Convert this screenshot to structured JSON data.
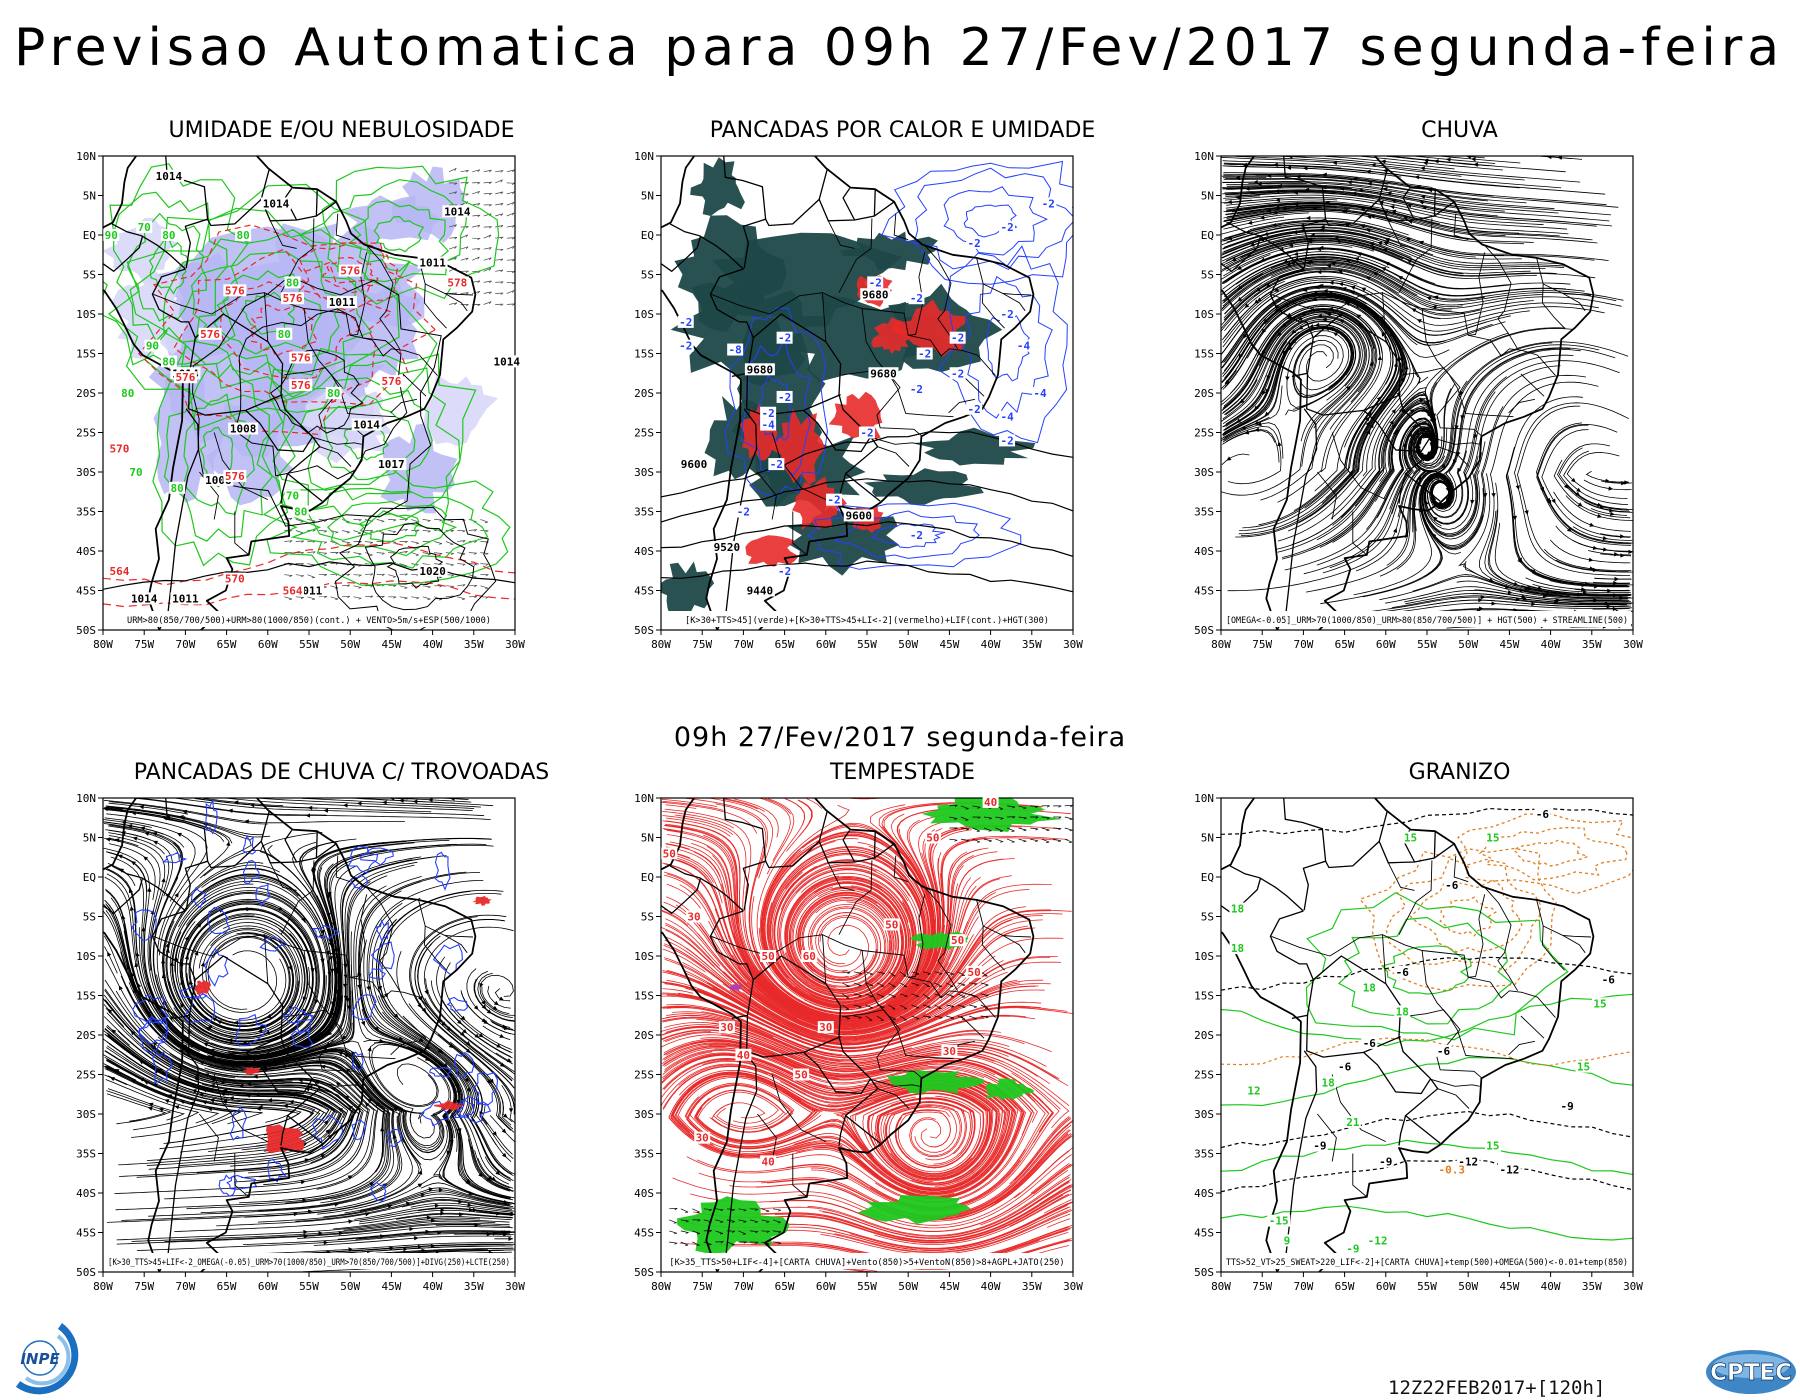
{
  "title": "Previsao Automatica  para 09h 27/Fev/2017 segunda-feira",
  "center_date": "09h 27/Fev/2017 segunda-feira",
  "run_label": "12Z22FEB2017+[120h]",
  "logos": {
    "left": "INPE",
    "right": "CPTEC"
  },
  "colors": {
    "green": "#1ec81e",
    "red": "#e82a2a",
    "blue": "#2440ff",
    "lavender": "#b6b6f4",
    "dark_teal": "#1d4848",
    "orange": "#e08020",
    "magenta": "#b040b0",
    "black": "#000000"
  },
  "axes": {
    "lat_labels": [
      "10N",
      "5N",
      "EQ",
      "5S",
      "10S",
      "15S",
      "20S",
      "25S",
      "30S",
      "35S",
      "40S",
      "45S",
      "50S"
    ],
    "lon_labels": [
      "80W",
      "75W",
      "70W",
      "65W",
      "60W",
      "55W",
      "50W",
      "45W",
      "40W",
      "35W",
      "30W"
    ]
  },
  "panels": [
    {
      "key": "umidade",
      "title": "UMIDADE E/OU NEBULOSIDADE",
      "legend": "URM>80(850/700/500)+URM>80(1000/850)(cont.) + VENTO>5m/s+ESP(500/1000)",
      "labels": [
        {
          "t": "1014",
          "lon": -72,
          "lat": 7.5,
          "c": "black"
        },
        {
          "t": "1014",
          "lon": -59,
          "lat": 4,
          "c": "black"
        },
        {
          "t": "1014",
          "lon": -37,
          "lat": 3,
          "c": "black"
        },
        {
          "t": "1011",
          "lon": -40,
          "lat": -3.5,
          "c": "black"
        },
        {
          "t": "1011",
          "lon": -51,
          "lat": -8.5,
          "c": "black"
        },
        {
          "t": "1014",
          "lon": -70,
          "lat": -17.5,
          "c": "black"
        },
        {
          "t": "1014",
          "lon": -31,
          "lat": -16,
          "c": "black"
        },
        {
          "t": "1008",
          "lon": -63,
          "lat": -24.5,
          "c": "black"
        },
        {
          "t": "1014",
          "lon": -48,
          "lat": -24,
          "c": "black"
        },
        {
          "t": "1017",
          "lon": -45,
          "lat": -29,
          "c": "black"
        },
        {
          "t": "1008",
          "lon": -66,
          "lat": -31,
          "c": "black"
        },
        {
          "t": "1020",
          "lon": -40,
          "lat": -42.5,
          "c": "black"
        },
        {
          "t": "1014",
          "lon": -75,
          "lat": -46,
          "c": "black"
        },
        {
          "t": "1011",
          "lon": -70,
          "lat": -46,
          "c": "black"
        },
        {
          "t": "1011",
          "lon": -55,
          "lat": -45,
          "c": "black"
        },
        {
          "t": "576",
          "lon": -50,
          "lat": -4.5,
          "c": "red"
        },
        {
          "t": "576",
          "lon": -64,
          "lat": -7,
          "c": "red"
        },
        {
          "t": "576",
          "lon": -57,
          "lat": -8,
          "c": "red"
        },
        {
          "t": "578",
          "lon": -37,
          "lat": -6,
          "c": "red"
        },
        {
          "t": "576",
          "lon": -67,
          "lat": -12.5,
          "c": "red"
        },
        {
          "t": "576",
          "lon": -70,
          "lat": -18,
          "c": "red"
        },
        {
          "t": "576",
          "lon": -56,
          "lat": -19,
          "c": "red"
        },
        {
          "t": "576",
          "lon": -45,
          "lat": -18.5,
          "c": "red"
        },
        {
          "t": "576",
          "lon": -56,
          "lat": -15.5,
          "c": "red"
        },
        {
          "t": "570",
          "lon": -78,
          "lat": -27,
          "c": "red"
        },
        {
          "t": "576",
          "lon": -64,
          "lat": -30.5,
          "c": "red"
        },
        {
          "t": "570",
          "lon": -64,
          "lat": -43.5,
          "c": "red"
        },
        {
          "t": "564",
          "lon": -78,
          "lat": -42.5,
          "c": "red"
        },
        {
          "t": "564",
          "lon": -57,
          "lat": -45,
          "c": "red"
        },
        {
          "t": "90",
          "lon": -79,
          "lat": 0,
          "c": "green"
        },
        {
          "t": "80",
          "lon": -72,
          "lat": 0,
          "c": "green"
        },
        {
          "t": "70",
          "lon": -75,
          "lat": 1,
          "c": "green"
        },
        {
          "t": "80",
          "lon": -63,
          "lat": 0,
          "c": "green"
        },
        {
          "t": "80",
          "lon": -57,
          "lat": -6,
          "c": "green"
        },
        {
          "t": "80",
          "lon": -58,
          "lat": -12.5,
          "c": "green"
        },
        {
          "t": "90",
          "lon": -74,
          "lat": -14,
          "c": "green"
        },
        {
          "t": "80",
          "lon": -72,
          "lat": -16,
          "c": "green"
        },
        {
          "t": "80",
          "lon": -77,
          "lat": -20,
          "c": "green"
        },
        {
          "t": "70",
          "lon": -76,
          "lat": -30,
          "c": "green"
        },
        {
          "t": "80",
          "lon": -71,
          "lat": -32,
          "c": "green"
        },
        {
          "t": "80",
          "lon": -52,
          "lat": -20,
          "c": "green"
        },
        {
          "t": "70",
          "lon": -57,
          "lat": -33,
          "c": "green"
        },
        {
          "t": "80",
          "lon": -56,
          "lat": -35,
          "c": "green"
        }
      ]
    },
    {
      "key": "pancadas_calor",
      "title": "PANCADAS POR CALOR E UMIDADE",
      "legend": "[K>30+TTS>45](verde)+[K>30+TTS>45+LI<-2](vermelho)+LIF(cont.)+HGT(300)",
      "labels": [
        {
          "t": "9680",
          "lon": -54,
          "lat": -7.5,
          "c": "black"
        },
        {
          "t": "9680",
          "lon": -68,
          "lat": -17,
          "c": "black"
        },
        {
          "t": "9680",
          "lon": -53,
          "lat": -17.5,
          "c": "black"
        },
        {
          "t": "9600",
          "lon": -76,
          "lat": -29,
          "c": "black"
        },
        {
          "t": "9600",
          "lon": -56,
          "lat": -35.5,
          "c": "black"
        },
        {
          "t": "9520",
          "lon": -72,
          "lat": -39.5,
          "c": "black"
        },
        {
          "t": "9440",
          "lon": -68,
          "lat": -45,
          "c": "black"
        },
        {
          "t": "-2",
          "lon": -54,
          "lat": -6,
          "c": "blue"
        },
        {
          "t": "-2",
          "lon": -77,
          "lat": -11,
          "c": "blue"
        },
        {
          "t": "-2",
          "lon": -65,
          "lat": -13,
          "c": "blue"
        },
        {
          "t": "-8",
          "lon": -71,
          "lat": -14.5,
          "c": "blue"
        },
        {
          "t": "-2",
          "lon": -77,
          "lat": -14,
          "c": "blue"
        },
        {
          "t": "-2",
          "lon": -48,
          "lat": -15,
          "c": "blue"
        },
        {
          "t": "-2",
          "lon": -44,
          "lat": -13,
          "c": "blue"
        },
        {
          "t": "-2",
          "lon": -44,
          "lat": -17.5,
          "c": "blue"
        },
        {
          "t": "-2",
          "lon": -49,
          "lat": -19.5,
          "c": "blue"
        },
        {
          "t": "-2",
          "lon": -65,
          "lat": -20.5,
          "c": "blue"
        },
        {
          "t": "-2",
          "lon": -67,
          "lat": -22.5,
          "c": "blue"
        },
        {
          "t": "-4",
          "lon": -67,
          "lat": -24,
          "c": "blue"
        },
        {
          "t": "-2",
          "lon": -55,
          "lat": -25,
          "c": "blue"
        },
        {
          "t": "-2",
          "lon": -66,
          "lat": -29,
          "c": "blue"
        },
        {
          "t": "-2",
          "lon": -59,
          "lat": -33.5,
          "c": "blue"
        },
        {
          "t": "-2",
          "lon": -70,
          "lat": -35,
          "c": "blue"
        },
        {
          "t": "-2",
          "lon": -65,
          "lat": -42.5,
          "c": "blue"
        },
        {
          "t": "-2",
          "lon": -49,
          "lat": -8,
          "c": "blue"
        },
        {
          "t": "-2",
          "lon": -42,
          "lat": -1,
          "c": "blue"
        },
        {
          "t": "-2",
          "lon": -38,
          "lat": 1,
          "c": "blue"
        },
        {
          "t": "-2",
          "lon": -33,
          "lat": 4,
          "c": "blue"
        },
        {
          "t": "-2",
          "lon": -38,
          "lat": -10,
          "c": "blue"
        },
        {
          "t": "-4",
          "lon": -36,
          "lat": -14,
          "c": "blue"
        },
        {
          "t": "-4",
          "lon": -38,
          "lat": -23,
          "c": "blue"
        },
        {
          "t": "-2",
          "lon": -42,
          "lat": -22,
          "c": "blue"
        },
        {
          "t": "-2",
          "lon": -49,
          "lat": -38,
          "c": "blue"
        },
        {
          "t": "-4",
          "lon": -34,
          "lat": -20,
          "c": "blue"
        },
        {
          "t": "-2",
          "lon": -38,
          "lat": -26,
          "c": "blue"
        }
      ]
    },
    {
      "key": "chuva",
      "title": "CHUVA",
      "legend": "[OMEGA<-0.05]_URM>70(1000/850)_URM>80(850/700/500)] + HGT(500) + STREAMLINE(500)",
      "labels": []
    },
    {
      "key": "trovoadas",
      "title": "PANCADAS DE CHUVA C/ TROVOADAS",
      "legend": "[K>30_TTS>45+LIF<-2_OMEGA(-0.05)_URM>70(1000/850)_URM>70(850/700/500)]+DIVG(250)+LCTE(250)",
      "labels": []
    },
    {
      "key": "tempestade",
      "title": "TEMPESTADE",
      "legend": "[K>35_TTS>50+LIF<-4]+[CARTA CHUVA]+Vento(850)>5+VentoN(850)>8+AGPL+JATO(250)",
      "labels": [
        {
          "t": "40",
          "lon": -40,
          "lat": 9.5,
          "c": "red"
        },
        {
          "t": "50",
          "lon": -79,
          "lat": 3,
          "c": "red"
        },
        {
          "t": "50",
          "lon": -47,
          "lat": 5,
          "c": "red"
        },
        {
          "t": "30",
          "lon": -76,
          "lat": -5,
          "c": "red"
        },
        {
          "t": "50",
          "lon": -52,
          "lat": -6,
          "c": "red"
        },
        {
          "t": "50",
          "lon": -44,
          "lat": -8,
          "c": "red"
        },
        {
          "t": "50",
          "lon": -67,
          "lat": -10,
          "c": "red"
        },
        {
          "t": "60",
          "lon": -62,
          "lat": -10,
          "c": "red"
        },
        {
          "t": "50",
          "lon": -42,
          "lat": -12,
          "c": "red"
        },
        {
          "t": "30",
          "lon": -72,
          "lat": -19,
          "c": "red"
        },
        {
          "t": "40",
          "lon": -70,
          "lat": -22.5,
          "c": "red"
        },
        {
          "t": "30",
          "lon": -60,
          "lat": -19,
          "c": "red"
        },
        {
          "t": "30",
          "lon": -45,
          "lat": -22,
          "c": "red"
        },
        {
          "t": "50",
          "lon": -63,
          "lat": -25,
          "c": "red"
        },
        {
          "t": "30",
          "lon": -75,
          "lat": -33,
          "c": "red"
        },
        {
          "t": "40",
          "lon": -67,
          "lat": -36,
          "c": "red"
        }
      ]
    },
    {
      "key": "granizo",
      "title": "GRANIZO",
      "legend": "TTS>52_VT>25_SWEAT>220_LIF<-2]+[CARTA CHUVA]+temp(500)+OMEGA(500)<-0.01+temp(850)",
      "labels": [
        {
          "t": "-6",
          "lon": -41,
          "lat": 8,
          "c": "black"
        },
        {
          "t": "-6",
          "lon": -52,
          "lat": -1,
          "c": "black"
        },
        {
          "t": "-6",
          "lon": -58,
          "lat": -12,
          "c": "black"
        },
        {
          "t": "-6",
          "lon": -33,
          "lat": -13,
          "c": "black"
        },
        {
          "t": "-6",
          "lon": -62,
          "lat": -21,
          "c": "black"
        },
        {
          "t": "-6",
          "lon": -53,
          "lat": -22,
          "c": "black"
        },
        {
          "t": "-6",
          "lon": -65,
          "lat": -24,
          "c": "black"
        },
        {
          "t": "-9",
          "lon": -68,
          "lat": -34,
          "c": "black"
        },
        {
          "t": "-9",
          "lon": -60,
          "lat": -36,
          "c": "black"
        },
        {
          "t": "-9",
          "lon": -38,
          "lat": -29,
          "c": "black"
        },
        {
          "t": "-12",
          "lon": -45,
          "lat": -37,
          "c": "black"
        },
        {
          "t": "-12",
          "lon": -50,
          "lat": -36,
          "c": "black"
        },
        {
          "t": "15",
          "lon": -47,
          "lat": 5,
          "c": "green"
        },
        {
          "t": "15",
          "lon": -57,
          "lat": 5,
          "c": "green"
        },
        {
          "t": "18",
          "lon": -78,
          "lat": -4,
          "c": "green"
        },
        {
          "t": "18",
          "lon": -78,
          "lat": -9,
          "c": "green"
        },
        {
          "t": "18",
          "lon": -62,
          "lat": -14,
          "c": "green"
        },
        {
          "t": "18",
          "lon": -58,
          "lat": -17,
          "c": "green"
        },
        {
          "t": "15",
          "lon": -34,
          "lat": -16,
          "c": "green"
        },
        {
          "t": "15",
          "lon": -36,
          "lat": -24,
          "c": "green"
        },
        {
          "t": "12",
          "lon": -76,
          "lat": -27,
          "c": "green"
        },
        {
          "t": "18",
          "lon": -67,
          "lat": -26,
          "c": "green"
        },
        {
          "t": "21",
          "lon": -64,
          "lat": -31,
          "c": "green"
        },
        {
          "t": "15",
          "lon": -47,
          "lat": -34,
          "c": "green"
        },
        {
          "t": "-15",
          "lon": -73,
          "lat": -43.5,
          "c": "green"
        },
        {
          "t": "-12",
          "lon": -61,
          "lat": -46,
          "c": "green"
        },
        {
          "t": "-9",
          "lon": -64,
          "lat": -47,
          "c": "green"
        },
        {
          "t": "9",
          "lon": -72,
          "lat": -46,
          "c": "green"
        },
        {
          "t": "-0.3",
          "lon": -52,
          "lat": -37,
          "c": "orange"
        }
      ]
    }
  ]
}
